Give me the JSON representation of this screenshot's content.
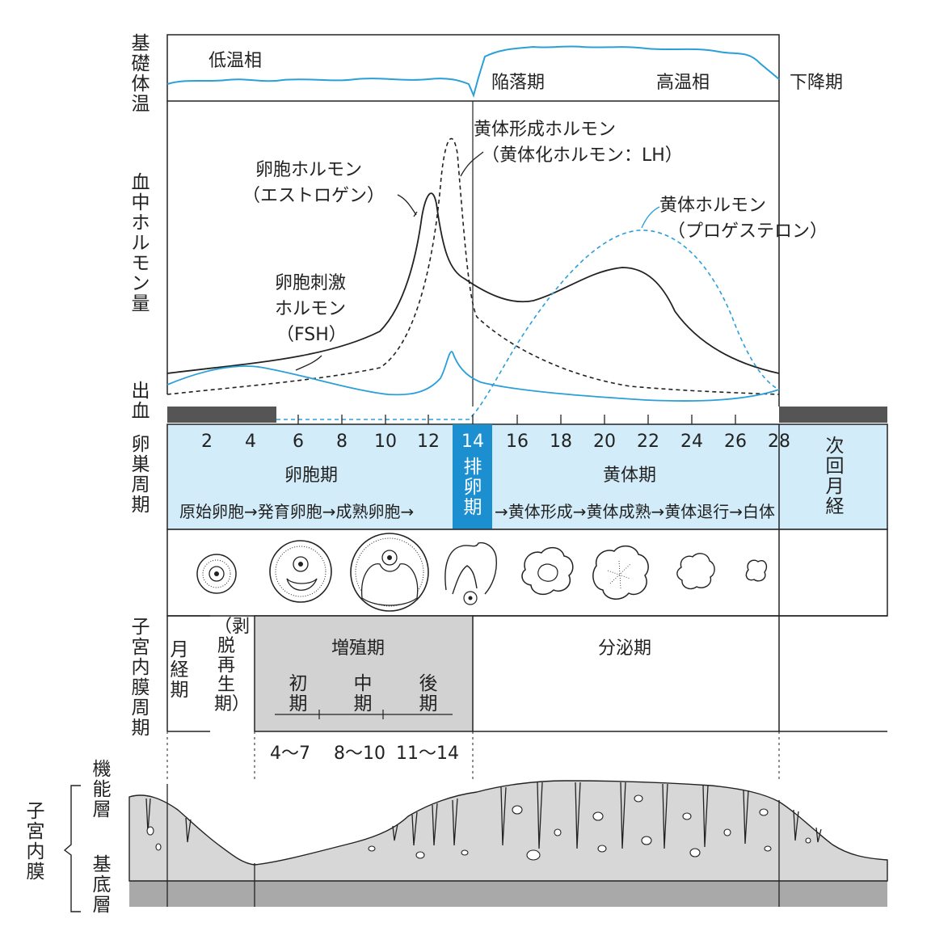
{
  "side_labels": {
    "bbt": "基礎体温",
    "hormone": "血中ホルモン量",
    "bleeding": "出血",
    "ovary": "卵巣周期",
    "uterus": "子宮内膜周期",
    "endometrium": "子宮内膜",
    "functional": "機能層",
    "basal": "基底層"
  },
  "bbt": {
    "low": "低温相",
    "falling": "陥落期",
    "high": "高温相",
    "decline": "下降期"
  },
  "hormones": {
    "lh_line1": "黄体形成ホルモン",
    "lh_line2": "（黄体化ホルモン：LH）",
    "est_line1": "卵胞ホルモン",
    "est_line2": "（エストロゲン）",
    "prog_line1": "黄体ホルモン",
    "prog_line2": "（プロゲステロン）",
    "fsh_line1": "卵胞刺激",
    "fsh_line2": "ホルモン",
    "fsh_line3": "（FSH）"
  },
  "days": [
    "2",
    "4",
    "6",
    "8",
    "10",
    "12",
    "14",
    "16",
    "18",
    "20",
    "22",
    "24",
    "26",
    "28"
  ],
  "ovary": {
    "follicular": "卵胞期",
    "follicular_stages": "原始卵胞→発育卵胞→成熟卵胞→",
    "ovulation": "排卵期",
    "luteal": "黄体期",
    "luteal_stages": "→黄体形成→黄体成熟→黄体退行→白体",
    "next_menses": "次回月経"
  },
  "uterus": {
    "menstrual": "月経期",
    "regen": "（剥脱再生期）",
    "proliferative": "増殖期",
    "early": "初期",
    "mid": "中期",
    "late": "後期",
    "secretory": "分泌期",
    "range_early": "4〜7",
    "range_mid": "8〜10",
    "range_late": "11〜14"
  },
  "colors": {
    "blue": "#2a9fd8",
    "band": "#d3ecf9",
    "ovulation_band": "#1b8fd0",
    "gray": "#d2d2d2",
    "dark": "#555555"
  }
}
